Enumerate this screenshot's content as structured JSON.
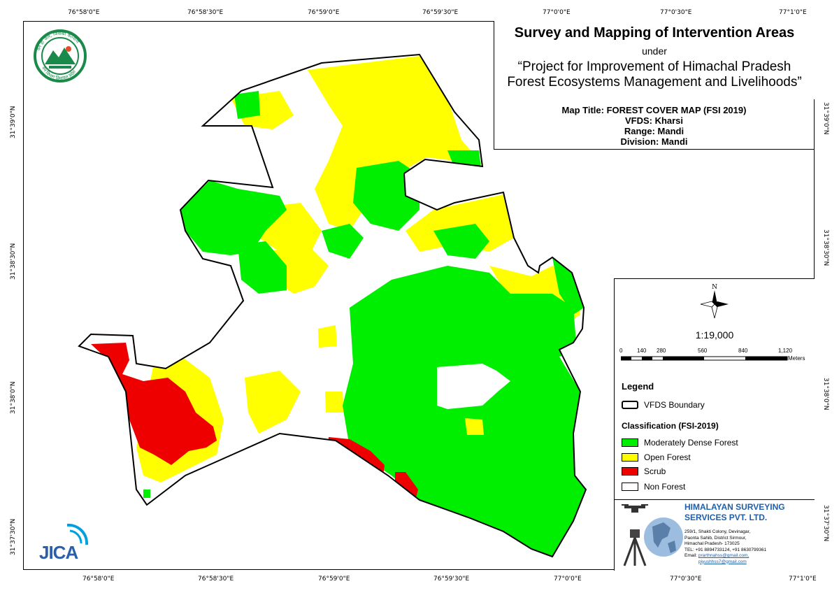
{
  "header": {
    "title": "Survey and Mapping of Intervention Areas",
    "under": "under",
    "project_line1": "“Project for Improvement of Himachal Pradesh",
    "project_line2": "Forest Ecosystems Management and Livelihoods”"
  },
  "map_info": {
    "map_title": "Map Title: FOREST COVER MAP (FSI 2019)",
    "vfds": "VFDS: Kharsi",
    "range": "Range: Mandi",
    "division": "Division: Mandi"
  },
  "graticule": {
    "lon_labels": [
      "76°58'0\"E",
      "76°58'30\"E",
      "76°59'0\"E",
      "76°59'30\"E",
      "77°0'0\"E",
      "77°0'30\"E",
      "77°1'0\"E"
    ],
    "lat_labels": [
      "31°39'0\"N",
      "31°38'30\"N",
      "31°38'0\"N",
      "31°37'30\"N"
    ]
  },
  "north_arrow": {
    "label": "N"
  },
  "scale": {
    "ratio": "1:19,000",
    "ticks": [
      "0",
      "140",
      "280",
      "560",
      "840",
      "1,120"
    ],
    "unit": "Meters"
  },
  "legend": {
    "title": "Legend",
    "boundary_label": "VFDS Boundary",
    "classification_title": "Classification (FSI-2019)",
    "items": [
      {
        "label": "Moderately Dense Forest",
        "color": "#00ee00"
      },
      {
        "label": "Open Forest",
        "color": "#ffff00"
      },
      {
        "label": "Scrub",
        "color": "#ee0000"
      },
      {
        "label": "Non Forest",
        "color": "#ffffff"
      }
    ]
  },
  "company": {
    "name_line1": "HIMALAYAN SURVEYING",
    "name_line2": "SERVICES PVT. LTD.",
    "address_line1": "259/1, Shakti Colony, Devinagar,",
    "address_line2": "Paonta Sahib, District Sirmour,",
    "address_line3": "Himachal Pradesh- 173025",
    "tel": "TEL: +91 8894733124, +91 8630799361",
    "email_label": "Email:",
    "email1": "prarthnahss@gmail.com,",
    "email2": "piyushhss7@gmail.com"
  },
  "logos": {
    "jica": "JICA",
    "hp_forest_top": "वन ही जल, जिसका कल्याण",
    "hp_forest_bottom": "वन विभाग हिमाचल प्रदेश"
  }
}
